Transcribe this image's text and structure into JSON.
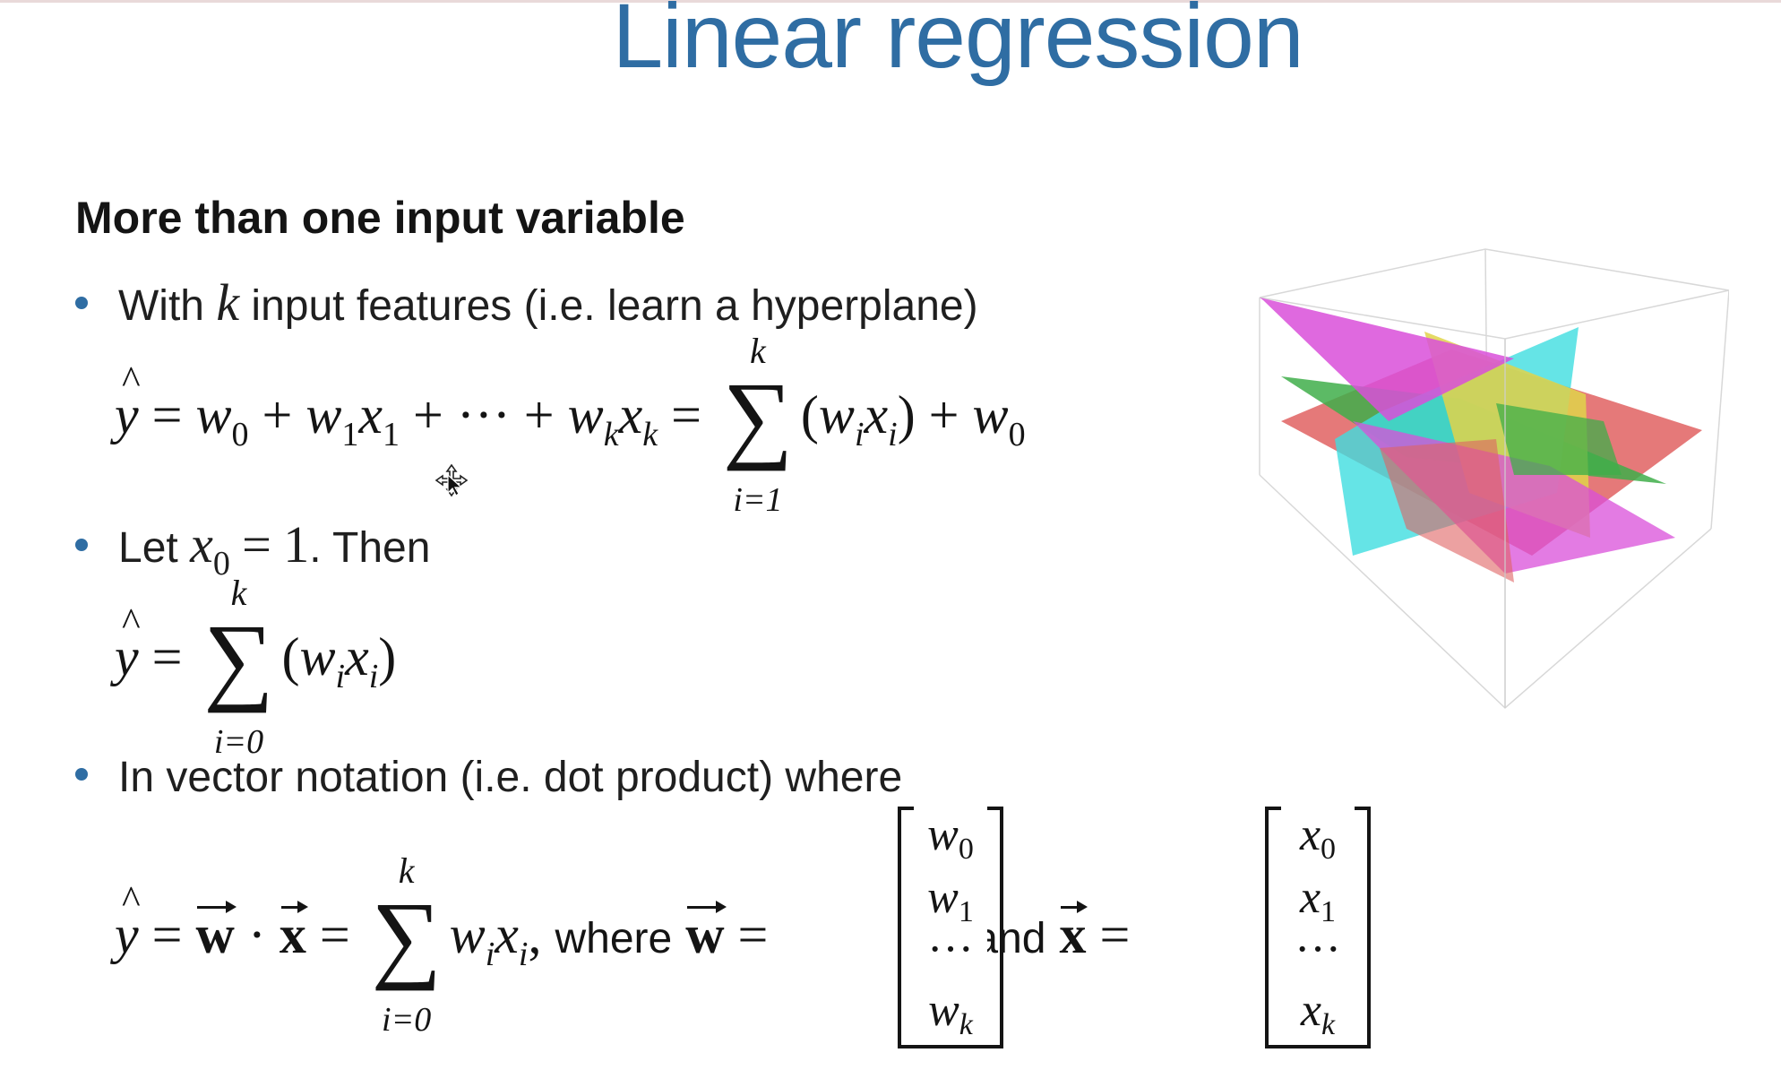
{
  "slide": {
    "title": "Linear regression",
    "subheading": "More than one input variable"
  },
  "bullets": [
    {
      "before": "With ",
      "var": "k",
      "after": " input features (i.e. learn a hyperplane)"
    },
    {
      "before": "Let ",
      "after": ". Then"
    },
    {
      "text": "In vector notation (i.e. dot product) where"
    }
  ],
  "equations": {
    "eq1": {
      "sum_upper": "k",
      "sum_lower": "i=1"
    },
    "let": {
      "rhs": "1"
    },
    "eq2": {
      "sum_upper": "k",
      "sum_lower": "i=0"
    },
    "eq3": {
      "sum_upper": "k",
      "sum_lower": "i=0",
      "where_word": "where",
      "and_word": "and"
    }
  },
  "matrix_w": [
    "w0",
    "w1",
    "···",
    "wk"
  ],
  "matrix_x": [
    "x0",
    "x1",
    "···",
    "xk"
  ],
  "colors": {
    "title": "#2f6da3",
    "bullet": "#2f6da3",
    "plane_magenta": "#d94fd9",
    "plane_cyan": "#3fdde0",
    "plane_green": "#3fae4a",
    "plane_yellow": "#e0d44a",
    "plane_red": "#e06262"
  },
  "icons": {
    "cursor": "move-cursor-icon",
    "figure": "hyperplanes-cube-figure"
  }
}
